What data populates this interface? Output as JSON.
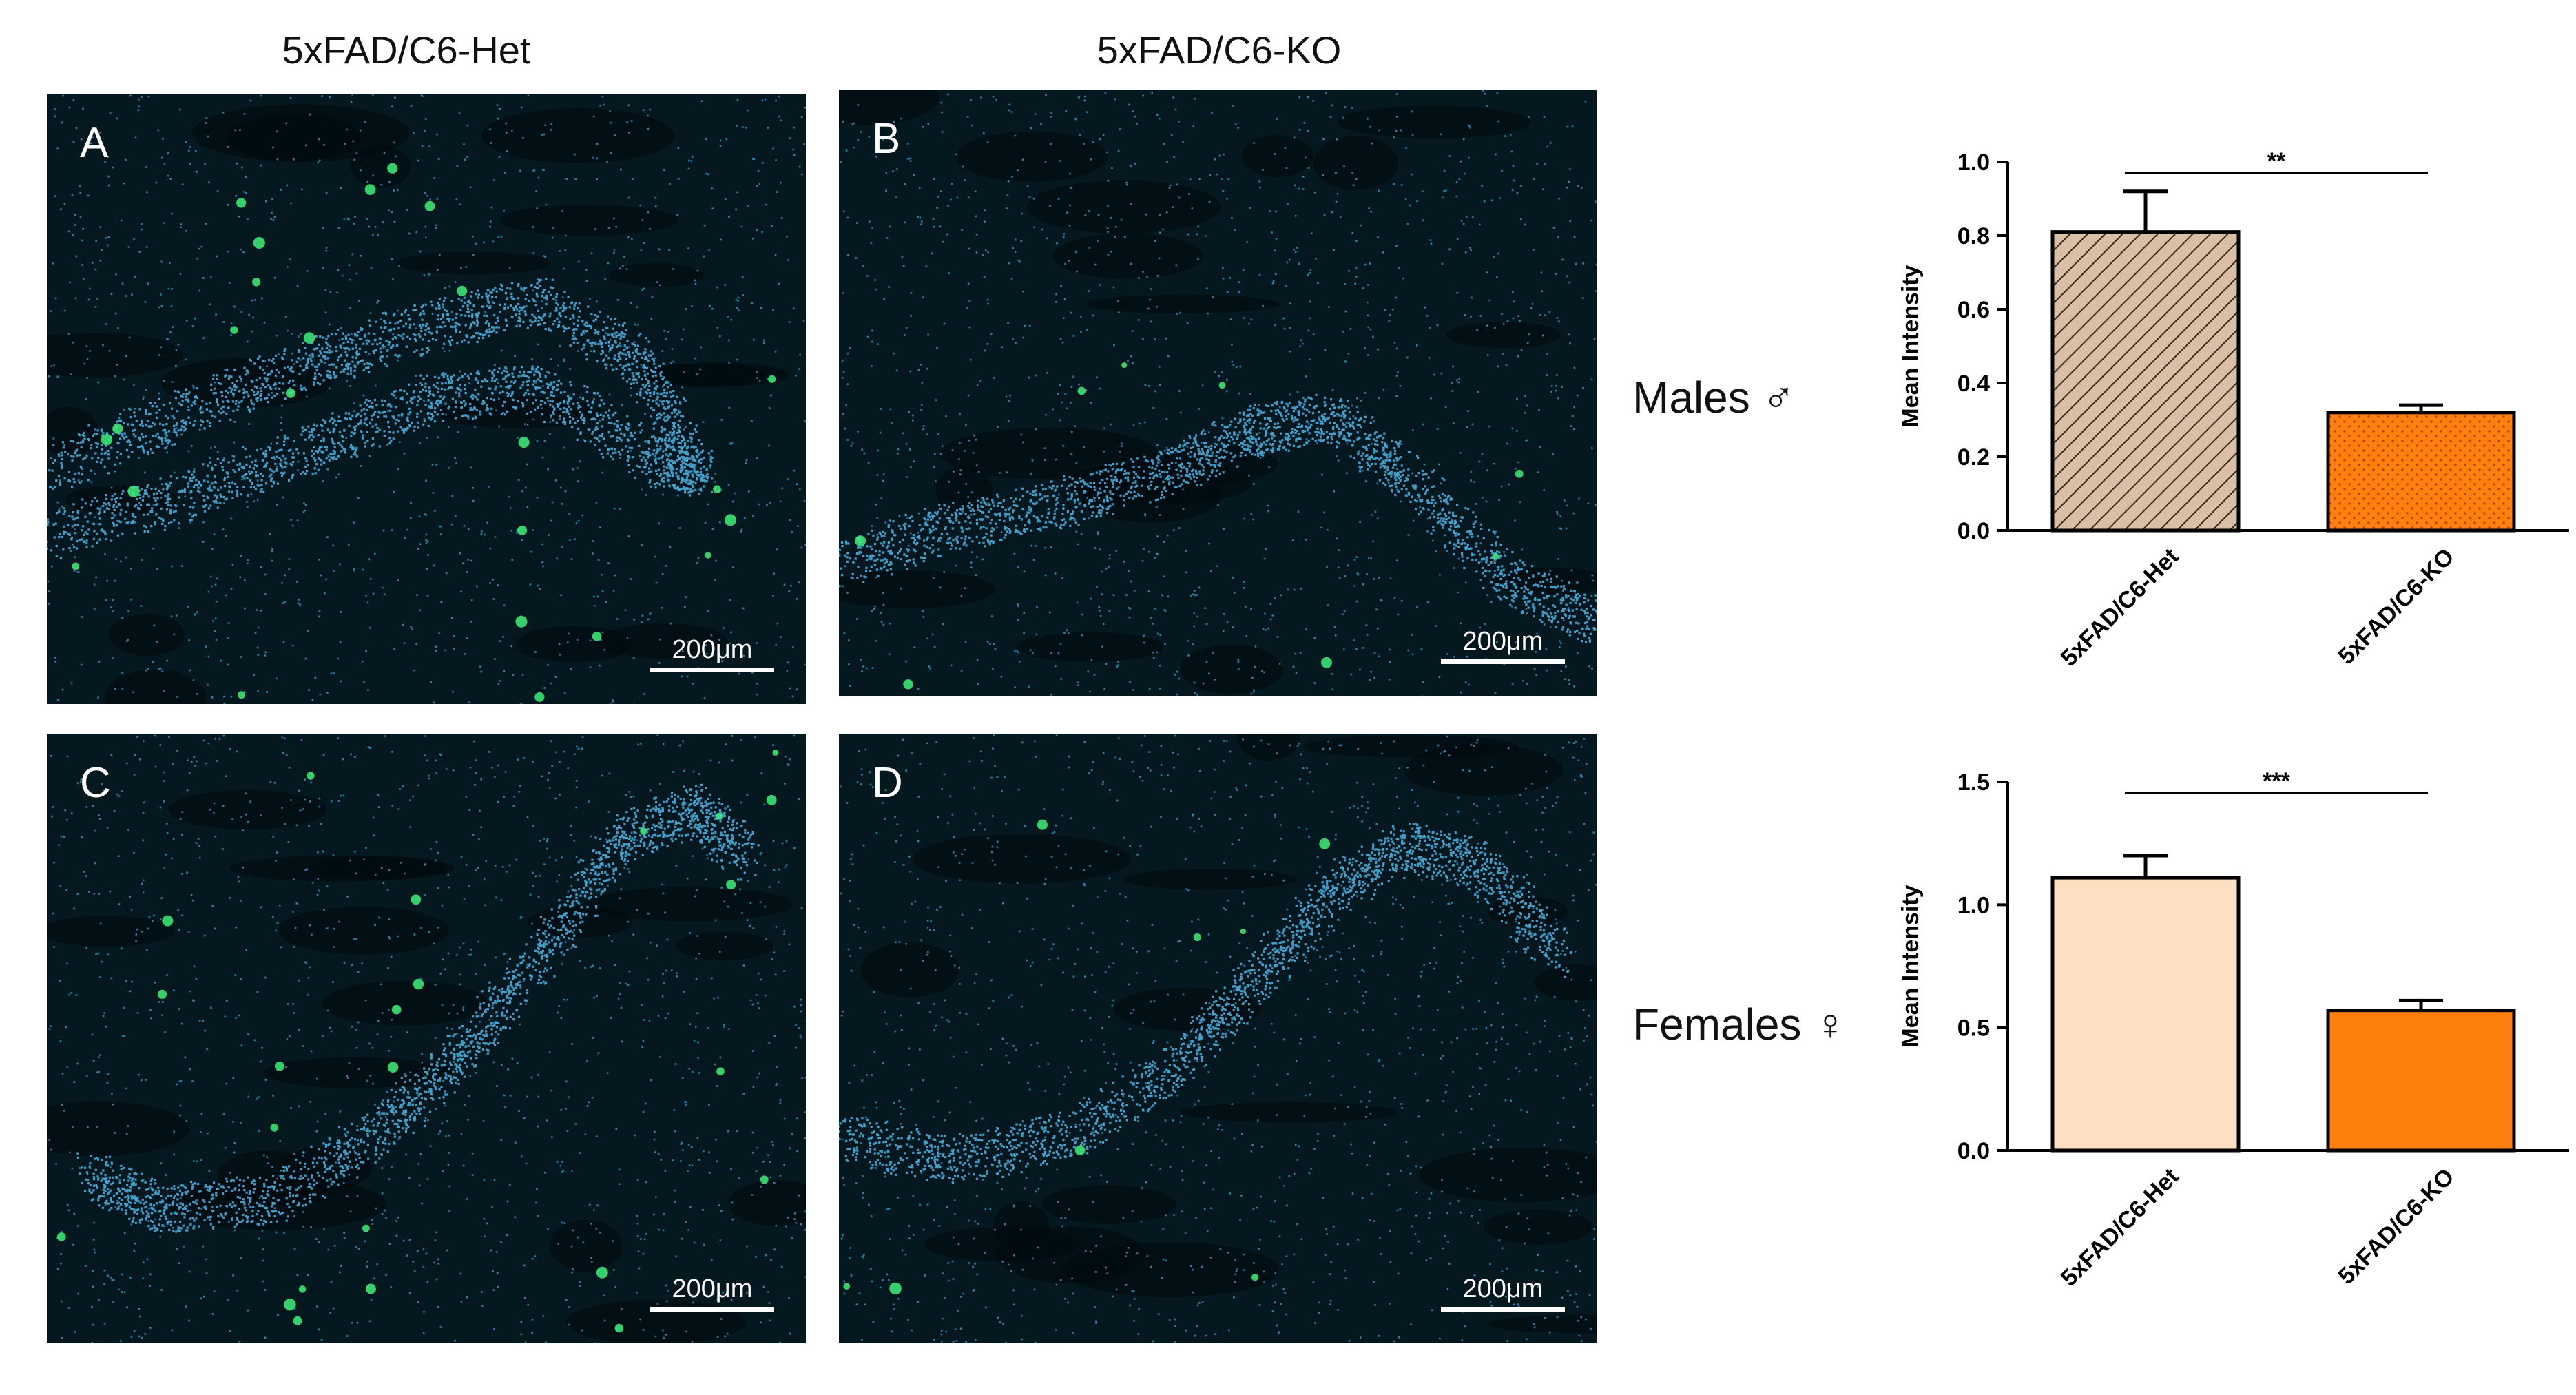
{
  "columns": [
    "5xFAD/C6-Het",
    "5xFAD/C6-KO"
  ],
  "panels": [
    {
      "letter": "A",
      "scale": "200μm"
    },
    {
      "letter": "B",
      "scale": "200μm"
    },
    {
      "letter": "C",
      "scale": "200μm"
    },
    {
      "letter": "D",
      "scale": "200μm"
    }
  ],
  "rows": [
    {
      "label": "Males ♂"
    },
    {
      "label": "Females ♀"
    }
  ],
  "chart_data": [
    {
      "type": "bar",
      "title": "",
      "xlabel": "",
      "ylabel": "Mean Intensity",
      "categories": [
        "5xFAD/C6-Het",
        "5xFAD/C6-KO"
      ],
      "values": [
        0.81,
        0.32
      ],
      "errors": [
        0.11,
        0.02
      ],
      "ylim": [
        0,
        1.0
      ],
      "yticks": [
        "0.0",
        "0.2",
        "0.4",
        "0.6",
        "0.8",
        "1.0"
      ],
      "significance": "**",
      "colors": [
        "#d9bfa6",
        "#ff7f0e"
      ],
      "patterns": [
        "diagonal-hatch",
        "dots"
      ],
      "grid": false
    },
    {
      "type": "bar",
      "title": "",
      "xlabel": "",
      "ylabel": "Mean Intensity",
      "categories": [
        "5xFAD/C6-Het",
        "5xFAD/C6-KO"
      ],
      "values": [
        1.11,
        0.57
      ],
      "errors": [
        0.09,
        0.04
      ],
      "ylim": [
        0,
        1.5
      ],
      "yticks": [
        "0.0",
        "0.5",
        "1.0",
        "1.5"
      ],
      "significance": "***",
      "colors": [
        "#fde0c2",
        "#ff7f0e"
      ],
      "patterns": [
        "solid",
        "solid"
      ],
      "grid": false
    }
  ]
}
